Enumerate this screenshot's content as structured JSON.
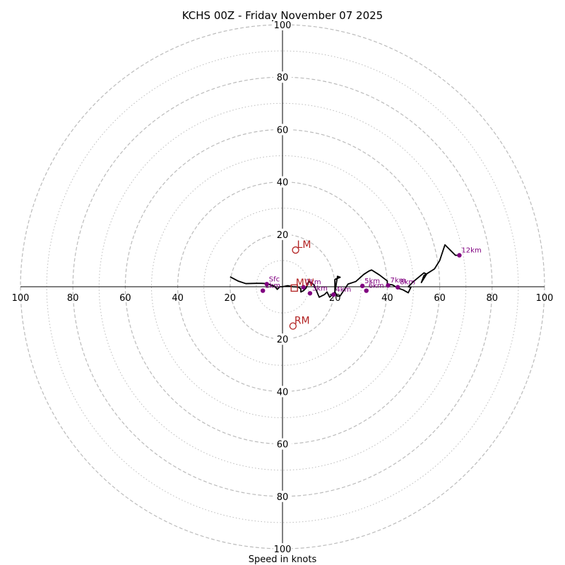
{
  "chart_data": {
    "type": "scatter",
    "title": "KCHS 00Z - Friday November 07 2025",
    "xlabel": "Speed in knots",
    "ylabel": "",
    "xlim": [
      -100,
      100
    ],
    "ylim": [
      -100,
      100
    ],
    "ring_major": [
      20,
      40,
      60,
      80,
      100
    ],
    "ring_minor": [
      10,
      30,
      50,
      70,
      90
    ],
    "tick_values": [
      20,
      40,
      60,
      80,
      100
    ],
    "tick_labels": [
      "20",
      "40",
      "60",
      "80",
      "100"
    ],
    "colors": {
      "trace": "#000000",
      "height_marker": "#800080",
      "motion_marker": "#b22222",
      "ring": "#bbbbbb"
    },
    "trace": {
      "name": "Hodograph trace",
      "u": [
        -20,
        -17,
        -14,
        -10,
        -8,
        -6,
        -3,
        -2,
        -1,
        0,
        2,
        4,
        6,
        7,
        7,
        8,
        9,
        10,
        12,
        14,
        16,
        17,
        18,
        19,
        20,
        21,
        22,
        20,
        20,
        21,
        22,
        25,
        28,
        31,
        33,
        34,
        37,
        40,
        40,
        40,
        42,
        44,
        46,
        48,
        49,
        48,
        50,
        54,
        55,
        53,
        54,
        55,
        58,
        60,
        62,
        64,
        66,
        67
      ],
      "v": [
        3.8,
        2.2,
        1.2,
        1.3,
        1.3,
        1.2,
        0.2,
        -1,
        0,
        0,
        0.4,
        0,
        -0.1,
        -0.8,
        -2,
        -1.5,
        -0.5,
        2,
        0.8,
        -4,
        -3,
        -2,
        -4,
        -3,
        -2,
        4,
        3.6,
        2.8,
        -2,
        -3.6,
        -3.5,
        1,
        2,
        4.7,
        6,
        6.4,
        4.5,
        2.2,
        1.6,
        1,
        0.7,
        -0.5,
        -1.2,
        -2.3,
        -0.2,
        0,
        2,
        5.3,
        4.8,
        1.6,
        4.3,
        4.9,
        6.8,
        10,
        16,
        14,
        12,
        12
      ]
    },
    "height_points": [
      {
        "label": "Sfc",
        "u": -6,
        "v": 1
      },
      {
        "label": "1km",
        "u": -7.5,
        "v": -1.5
      },
      {
        "label": "2km",
        "u": 8,
        "v": -0.2
      },
      {
        "label": "3km",
        "u": 10.5,
        "v": -2.5
      },
      {
        "label": "4km",
        "u": 19.5,
        "v": -3
      },
      {
        "label": "5km",
        "u": 30.5,
        "v": 0.3
      },
      {
        "label": "6km",
        "u": 32,
        "v": -1.5
      },
      {
        "label": "7km",
        "u": 40.3,
        "v": 0.5
      },
      {
        "label": "8km",
        "u": 44,
        "v": -0.2
      },
      {
        "label": "12km",
        "u": 67.5,
        "v": 12
      }
    ],
    "storm_motion": [
      {
        "label": "LM",
        "marker": "circle",
        "u": 5,
        "v": 14
      },
      {
        "label": "RM",
        "marker": "circle",
        "u": 4,
        "v": -15
      },
      {
        "label": "MW",
        "marker": "square",
        "u": 4.5,
        "v": -0.5
      }
    ]
  }
}
